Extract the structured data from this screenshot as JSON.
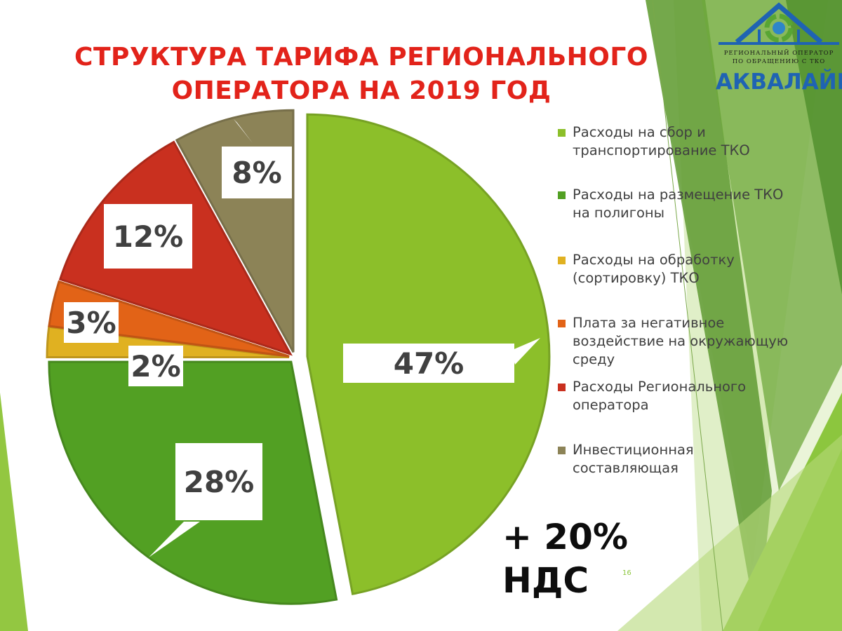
{
  "slide": {
    "title": "СТРУКТУРА ТАРИФА РЕГИОНАЛЬНОГО ОПЕРАТОРА НА 2019 ГОД",
    "vat_note": "+ 20% НДС",
    "page_number": "16"
  },
  "logo": {
    "subtitle_line1": "РЕГИОНАЛЬНЫЙ ОПЕРАТОР",
    "subtitle_line2": "ПО ОБРАЩЕНИЮ С ТКО",
    "name": "АКВАЛАЙН",
    "brand_color": "#1f63b3"
  },
  "chart_data": {
    "type": "pie",
    "title": "СТРУКТУРА ТАРИФА РЕГИОНАЛЬНОГО ОПЕРАТОРА НА 2019 ГОД",
    "unit": "%",
    "legend_position": "right",
    "slices": [
      {
        "name": "Расходы на сбор и транспортирование ТКО",
        "value": 47,
        "label": "47%",
        "color": "#8cbf2a"
      },
      {
        "name": "Расходы на размещение ТКО на полигоны",
        "value": 28,
        "label": "28%",
        "color": "#52a023"
      },
      {
        "name": "Расходы на обработку (сортировку) ТКО",
        "value": 2,
        "label": "2%",
        "color": "#e0b121"
      },
      {
        "name": "Плата за негативное воздействие на окружающую среду",
        "value": 3,
        "label": "3%",
        "color": "#e26317"
      },
      {
        "name": "Расходы Регионального оператора",
        "value": 12,
        "label": "12%",
        "color": "#c9301f"
      },
      {
        "name": "Инвестиционная составляющая",
        "value": 8,
        "label": "8%",
        "color": "#8c8357"
      }
    ]
  }
}
